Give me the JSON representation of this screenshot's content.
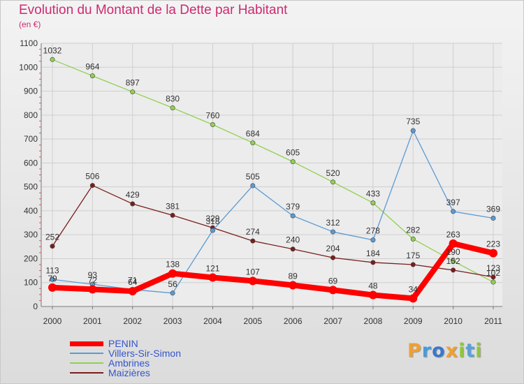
{
  "header": {
    "title": "Evolution du Montant de la Dette par Habitant",
    "subtitle": "(en €)"
  },
  "logo": {
    "letters": [
      "P",
      "r",
      "o",
      "x",
      "i",
      "t",
      "i"
    ]
  },
  "colors": {
    "title": "#cc2b72",
    "axis": "#7a7a7a",
    "grid": "#cfcfcf",
    "tick_marks": "#e05555",
    "logo": [
      "#f0a030",
      "#4a9ad8",
      "#3a78c8",
      "#f0a030",
      "#8dc63f",
      "#5aa0d8",
      "#8dc63f"
    ]
  },
  "chart_data": {
    "type": "line",
    "title": "Evolution du Montant de la Dette par Habitant",
    "ylabel": "(en €)",
    "x": [
      "2000",
      "2001",
      "2002",
      "2003",
      "2004",
      "2005",
      "2006",
      "2007",
      "2008",
      "2009",
      "2010",
      "2011"
    ],
    "ylim": [
      0,
      1100
    ],
    "yticks": [
      "0",
      "100",
      "200",
      "300",
      "400",
      "500",
      "600",
      "700",
      "800",
      "900",
      "1000",
      "1100"
    ],
    "grid": true,
    "legend_position": "bottom-left",
    "series": [
      {
        "name": "PENIN",
        "color": "#ff0000",
        "width": 8,
        "label_color": "#333333",
        "values": [
          79,
          72,
          64,
          138,
          121,
          107,
          89,
          69,
          48,
          34,
          263,
          223
        ],
        "labels": [
          "79",
          "72",
          "64",
          "138",
          "121",
          "107",
          "89",
          "69",
          "48",
          "34",
          "263",
          "223"
        ]
      },
      {
        "name": "Villers-Sir-Simon",
        "color": "#5b9bd5",
        "width": 1.3,
        "label_color": "#333333",
        "values": [
          113,
          93,
          71,
          56,
          318,
          505,
          379,
          312,
          278,
          735,
          397,
          369
        ],
        "labels": [
          "113",
          "93",
          "71",
          "56",
          "318",
          "505",
          "379",
          "312",
          "278",
          "735",
          "397",
          "369"
        ]
      },
      {
        "name": "Ambrines",
        "color": "#92d050",
        "width": 1.3,
        "label_color": "#333333",
        "values": [
          1032,
          964,
          897,
          830,
          760,
          684,
          605,
          520,
          433,
          282,
          190,
          102
        ],
        "labels": [
          "1032",
          "964",
          "897",
          "830",
          "760",
          "684",
          "605",
          "520",
          "433",
          "282",
          "190",
          "102"
        ]
      },
      {
        "name": "Maizières",
        "color": "#7b1d1d",
        "width": 1.3,
        "label_color": "#333333",
        "values": [
          252,
          506,
          429,
          381,
          329,
          274,
          240,
          204,
          184,
          175,
          152,
          123
        ],
        "labels": [
          "252",
          "506",
          "429",
          "381",
          "329",
          "274",
          "240",
          "204",
          "184",
          "175",
          "152",
          "123"
        ]
      }
    ]
  },
  "legend": {
    "items": [
      {
        "label": "PENIN",
        "color": "#ff0000",
        "text_color": "#3355cc",
        "thickness": 7
      },
      {
        "label": "Villers-Sir-Simon",
        "color": "#5b9bd5",
        "text_color": "#3355cc",
        "thickness": 2
      },
      {
        "label": "Ambrines",
        "color": "#92d050",
        "text_color": "#3355cc",
        "thickness": 2
      },
      {
        "label": "Maizières",
        "color": "#7b1d1d",
        "text_color": "#3355cc",
        "thickness": 2
      }
    ]
  }
}
